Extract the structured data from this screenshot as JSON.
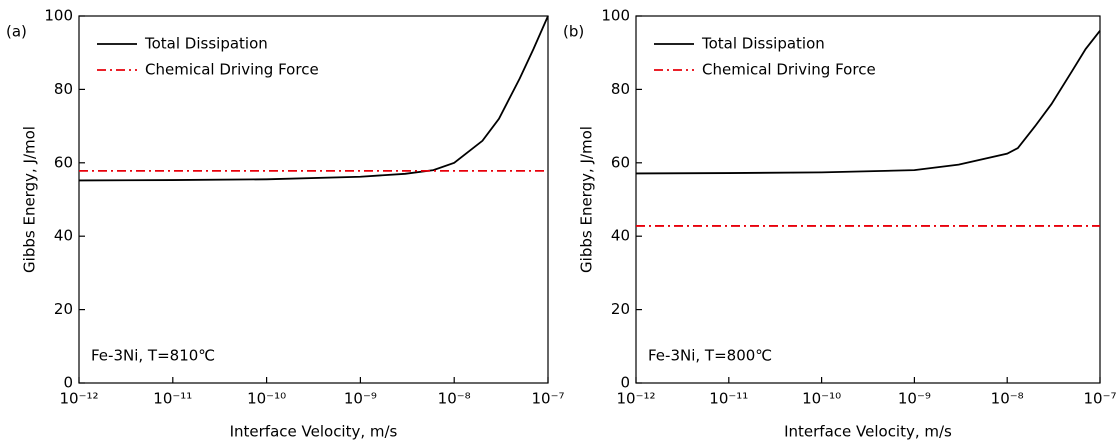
{
  "chart_data": [
    {
      "type": "line",
      "panel_label": "(a)",
      "annotation": "Fe-3Ni, T=810℃",
      "x_label": "Interface Velocity, m/s",
      "y_label": "Gibbs Energy, J/mol",
      "xscale": "log",
      "xlim": [
        1e-12,
        1e-07
      ],
      "ylim": [
        0,
        100
      ],
      "xticks": [
        {
          "value": 1e-12,
          "label": "10⁻¹²"
        },
        {
          "value": 1e-11,
          "label": "10⁻¹¹"
        },
        {
          "value": 1e-10,
          "label": "10⁻¹⁰"
        },
        {
          "value": 1e-09,
          "label": "10⁻⁹"
        },
        {
          "value": 1e-08,
          "label": "10⁻⁸"
        },
        {
          "value": 1e-07,
          "label": "10⁻⁷"
        }
      ],
      "yticks": [
        0,
        20,
        40,
        60,
        80,
        100
      ],
      "legend": "upper-left",
      "series": [
        {
          "name": "Total Dissipation",
          "color": "#000000",
          "dash": "solid",
          "x": [
            1e-12,
            1e-11,
            1e-10,
            1e-09,
            3e-09,
            6e-09,
            1e-08,
            2e-08,
            3e-08,
            5e-08,
            7e-08,
            1e-07
          ],
          "values": [
            55.2,
            55.3,
            55.5,
            56.2,
            57,
            58,
            60,
            66,
            72,
            83,
            91,
            100
          ]
        },
        {
          "name": "Chemical Driving Force",
          "color": "#e8000b",
          "dash": "dashdot",
          "x": [
            1e-12,
            1e-07
          ],
          "values": [
            57.8,
            57.8
          ]
        }
      ]
    },
    {
      "type": "line",
      "panel_label": "(b)",
      "annotation": "Fe-3Ni, T=800℃",
      "x_label": "Interface Velocity, m/s",
      "y_label": "Gibbs Energy, J/mol",
      "xscale": "log",
      "xlim": [
        1e-12,
        1e-07
      ],
      "ylim": [
        0,
        100
      ],
      "xticks": [
        {
          "value": 1e-12,
          "label": "10⁻¹²"
        },
        {
          "value": 1e-11,
          "label": "10⁻¹¹"
        },
        {
          "value": 1e-10,
          "label": "10⁻¹⁰"
        },
        {
          "value": 1e-09,
          "label": "10⁻⁹"
        },
        {
          "value": 1e-08,
          "label": "10⁻⁸"
        },
        {
          "value": 1e-07,
          "label": "10⁻⁷"
        }
      ],
      "yticks": [
        0,
        20,
        40,
        60,
        80,
        100
      ],
      "legend": "upper-left",
      "series": [
        {
          "name": "Total Dissipation",
          "color": "#000000",
          "dash": "solid",
          "x": [
            1e-12,
            1e-11,
            1e-10,
            1e-09,
            3e-09,
            1e-08,
            1.3e-08,
            2e-08,
            3e-08,
            5e-08,
            7e-08,
            1e-07
          ],
          "values": [
            57.1,
            57.2,
            57.4,
            58,
            59.5,
            62.5,
            64,
            70,
            76,
            85,
            91,
            96
          ]
        },
        {
          "name": "Chemical Driving Force",
          "color": "#e8000b",
          "dash": "dashdot",
          "x": [
            1e-12,
            1e-07
          ],
          "values": [
            42.8,
            42.8
          ]
        }
      ]
    }
  ]
}
